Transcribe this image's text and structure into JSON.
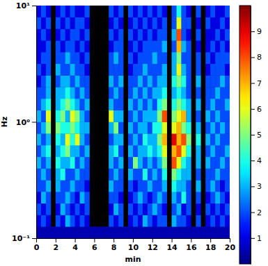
{
  "chart_data": {
    "type": "heatmap",
    "x_label": "min",
    "y_label": "Hz",
    "log": "y",
    "color": "jet",
    "xlim": [
      0,
      20
    ],
    "xticks": [
      0,
      2,
      4,
      6,
      8,
      10,
      12,
      14,
      16,
      18,
      20
    ],
    "ylim": [
      0.1,
      10
    ],
    "yticks": [
      {
        "value": 0.1,
        "label": "10⁻¹"
      },
      {
        "value": 1,
        "label": "10⁰"
      },
      {
        "value": 10,
        "label": "10¹"
      }
    ],
    "x_bins": [
      0,
      0.5,
      1,
      1.5,
      2,
      2.5,
      3,
      3.5,
      4,
      4.5,
      5,
      5.5,
      6,
      6.5,
      7,
      7.5,
      8,
      8.5,
      9,
      9.5,
      10,
      10.5,
      11,
      11.5,
      12,
      12.5,
      13,
      13.5,
      14,
      14.5,
      15,
      15.5,
      16,
      16.5,
      17,
      17.5,
      18,
      18.5,
      19,
      19.5,
      20
    ],
    "y_bins": [
      0.1,
      0.1259,
      0.1585,
      0.1995,
      0.2512,
      0.3162,
      0.3981,
      0.5012,
      0.631,
      0.7943,
      1,
      1.259,
      1.585,
      1.995,
      2.512,
      3.162,
      3.981,
      5.012,
      6.31,
      7.943,
      10
    ],
    "values": [
      [
        0.5,
        0.5,
        0.5,
        0.5,
        0.5,
        0.5,
        0.5,
        0.5,
        0.5,
        0.5,
        0.5,
        0.5,
        0.5,
        0.5,
        0.5,
        0.5,
        0.5,
        0.5,
        0.5,
        0.5,
        0.5,
        0.5,
        0.5,
        0.5,
        0.5,
        0.5,
        0.5,
        0.5,
        0.5,
        0.5,
        0.5,
        0.5,
        0.5,
        0.5,
        0.5,
        0.5,
        0.5,
        0.5,
        0.5,
        0.5
      ],
      [
        1,
        2,
        1,
        null,
        2,
        1,
        3,
        2,
        1,
        2,
        1,
        null,
        null,
        null,
        null,
        2,
        1,
        2,
        null,
        1,
        2,
        1,
        3,
        2,
        1,
        2,
        2,
        null,
        3,
        2,
        2,
        1,
        null,
        2,
        null,
        1,
        2,
        1,
        2,
        1
      ],
      [
        2,
        1,
        2,
        null,
        1,
        3,
        2,
        1,
        2,
        1,
        2,
        null,
        null,
        null,
        null,
        1,
        3,
        2,
        null,
        2,
        1,
        2,
        1,
        2,
        3,
        2,
        1,
        null,
        2,
        3,
        1,
        2,
        null,
        1,
        null,
        2,
        1,
        2,
        1,
        2
      ],
      [
        1,
        3,
        2,
        null,
        2,
        2,
        3,
        2,
        1,
        3,
        2,
        null,
        null,
        null,
        null,
        2,
        2,
        1,
        null,
        1,
        2,
        3,
        2,
        1,
        2,
        3,
        2,
        null,
        3,
        2,
        4,
        2,
        null,
        2,
        null,
        1,
        2,
        3,
        2,
        1
      ],
      [
        2,
        2,
        3,
        null,
        3,
        2,
        2,
        3,
        2,
        2,
        1,
        null,
        null,
        null,
        null,
        3,
        2,
        2,
        null,
        2,
        1,
        2,
        2,
        3,
        2,
        2,
        3,
        null,
        4,
        3,
        3,
        2,
        null,
        3,
        null,
        2,
        3,
        2,
        1,
        2
      ],
      [
        2,
        3,
        2,
        null,
        3,
        4,
        2,
        2,
        3,
        2,
        2,
        null,
        null,
        null,
        null,
        2,
        3,
        2,
        null,
        3,
        2,
        2,
        4,
        2,
        3,
        2,
        4,
        null,
        5,
        4,
        3,
        3,
        null,
        2,
        null,
        2,
        2,
        3,
        2,
        2
      ],
      [
        3,
        2,
        3,
        null,
        4,
        3,
        3,
        4,
        2,
        3,
        2,
        null,
        null,
        null,
        null,
        3,
        2,
        3,
        null,
        2,
        5,
        3,
        2,
        3,
        2,
        3,
        5,
        null,
        8,
        6,
        4,
        3,
        null,
        3,
        null,
        3,
        2,
        2,
        3,
        2
      ],
      [
        2,
        3,
        4,
        null,
        3,
        4,
        5,
        3,
        3,
        2,
        3,
        null,
        null,
        null,
        null,
        3,
        4,
        2,
        null,
        3,
        2,
        3,
        3,
        4,
        3,
        4,
        6,
        null,
        7,
        8,
        6,
        4,
        null,
        3,
        null,
        2,
        3,
        2,
        2,
        3
      ],
      [
        3,
        2,
        3,
        null,
        4,
        3,
        6,
        4,
        6,
        3,
        2,
        null,
        null,
        null,
        null,
        2,
        3,
        3,
        null,
        2,
        3,
        2,
        4,
        3,
        3,
        5,
        7,
        null,
        9,
        7,
        8,
        5,
        null,
        4,
        null,
        3,
        2,
        3,
        2,
        2
      ],
      [
        2,
        3,
        5,
        null,
        5,
        4,
        4,
        5,
        4,
        3,
        3,
        null,
        null,
        null,
        null,
        3,
        5,
        2,
        null,
        3,
        2,
        3,
        3,
        2,
        4,
        4,
        6,
        null,
        6,
        7,
        5,
        4,
        null,
        3,
        null,
        2,
        3,
        2,
        3,
        2
      ],
      [
        3,
        2,
        6,
        null,
        4,
        5,
        3,
        6,
        5,
        3,
        2,
        null,
        null,
        null,
        null,
        6,
        3,
        3,
        null,
        2,
        3,
        2,
        3,
        3,
        3,
        5,
        8,
        null,
        5,
        6,
        7,
        3,
        null,
        2,
        null,
        3,
        2,
        3,
        2,
        2
      ],
      [
        2,
        3,
        4,
        null,
        3,
        4,
        5,
        4,
        3,
        2,
        3,
        null,
        null,
        null,
        null,
        3,
        2,
        2,
        null,
        3,
        2,
        3,
        2,
        3,
        2,
        4,
        5,
        null,
        4,
        5,
        4,
        3,
        null,
        3,
        null,
        2,
        3,
        2,
        2,
        3
      ],
      [
        2,
        2,
        3,
        null,
        3,
        3,
        4,
        3,
        2,
        3,
        2,
        null,
        null,
        null,
        null,
        2,
        3,
        2,
        null,
        2,
        3,
        2,
        3,
        2,
        3,
        3,
        4,
        null,
        3,
        4,
        3,
        2,
        null,
        2,
        null,
        2,
        2,
        3,
        2,
        2
      ],
      [
        1,
        2,
        3,
        null,
        2,
        3,
        3,
        2,
        3,
        2,
        2,
        null,
        null,
        null,
        null,
        3,
        2,
        3,
        null,
        2,
        2,
        3,
        2,
        3,
        2,
        3,
        3,
        null,
        4,
        5,
        4,
        2,
        null,
        3,
        null,
        2,
        2,
        2,
        3,
        2
      ],
      [
        2,
        1,
        2,
        null,
        3,
        2,
        2,
        3,
        2,
        2,
        1,
        null,
        null,
        null,
        null,
        2,
        2,
        2,
        null,
        1,
        2,
        2,
        3,
        2,
        2,
        2,
        3,
        null,
        3,
        6,
        3,
        2,
        null,
        2,
        null,
        1,
        2,
        2,
        2,
        1
      ],
      [
        1,
        2,
        2,
        null,
        2,
        2,
        3,
        2,
        2,
        1,
        2,
        null,
        null,
        null,
        null,
        2,
        3,
        2,
        null,
        2,
        1,
        2,
        2,
        2,
        3,
        2,
        2,
        null,
        3,
        5,
        2,
        2,
        null,
        2,
        null,
        2,
        1,
        2,
        2,
        2
      ],
      [
        1,
        1,
        2,
        null,
        2,
        1,
        2,
        2,
        1,
        2,
        1,
        null,
        null,
        null,
        null,
        1,
        2,
        2,
        null,
        1,
        2,
        1,
        2,
        2,
        2,
        2,
        3,
        null,
        2,
        7,
        3,
        2,
        null,
        1,
        null,
        1,
        2,
        1,
        2,
        1
      ],
      [
        1,
        2,
        1,
        null,
        1,
        2,
        1,
        2,
        2,
        1,
        2,
        null,
        null,
        null,
        null,
        2,
        1,
        2,
        null,
        2,
        1,
        2,
        1,
        2,
        1,
        2,
        2,
        null,
        3,
        8,
        2,
        1,
        null,
        2,
        null,
        1,
        1,
        2,
        1,
        2
      ],
      [
        2,
        1,
        2,
        null,
        2,
        1,
        2,
        1,
        2,
        2,
        1,
        null,
        null,
        null,
        null,
        1,
        2,
        1,
        null,
        1,
        2,
        1,
        2,
        1,
        2,
        1,
        2,
        null,
        2,
        6,
        2,
        2,
        null,
        1,
        null,
        2,
        1,
        1,
        2,
        1
      ],
      [
        1,
        2,
        1,
        null,
        1,
        2,
        1,
        2,
        1,
        1,
        2,
        null,
        null,
        null,
        null,
        2,
        1,
        2,
        null,
        2,
        1,
        2,
        1,
        2,
        1,
        2,
        1,
        null,
        2,
        4,
        2,
        1,
        null,
        2,
        null,
        1,
        2,
        1,
        1,
        2
      ]
    ],
    "colorbar_range": [
      0,
      10
    ],
    "colorbar_ticks": [
      1,
      2,
      3,
      4,
      5,
      6,
      7,
      8,
      9
    ]
  }
}
